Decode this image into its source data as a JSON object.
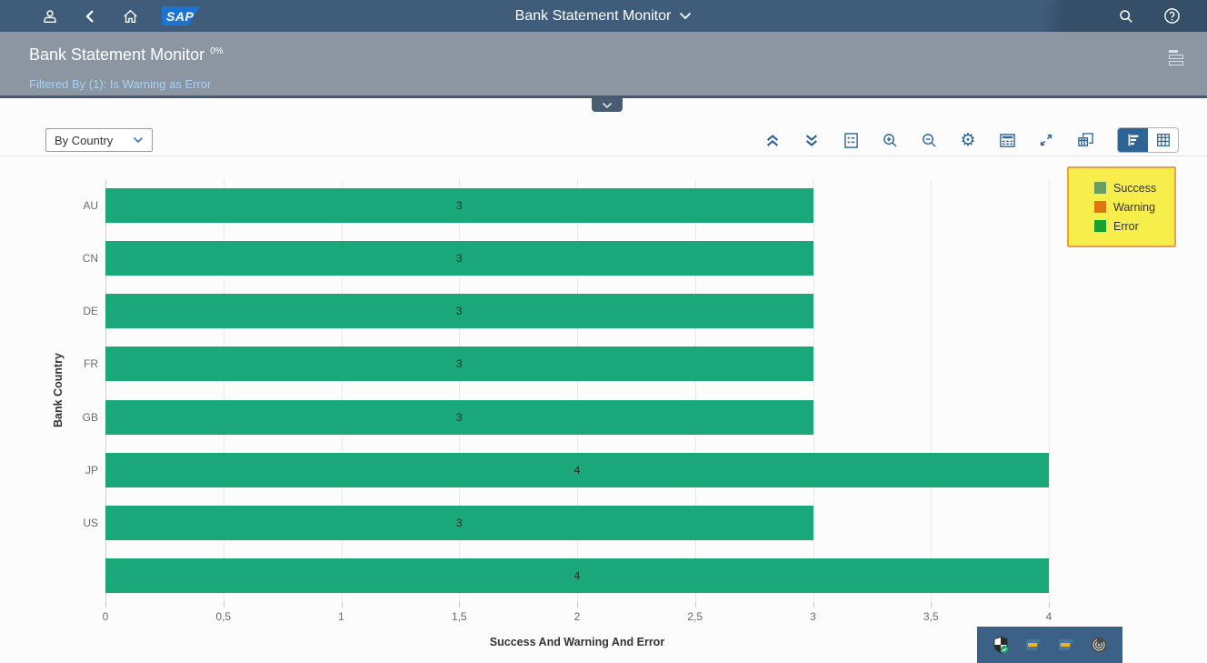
{
  "shell": {
    "title": "Bank Statement Monitor",
    "logo_text": "SAP",
    "icons": [
      "person-icon",
      "back-icon",
      "home-icon",
      "sap-logo",
      "title-chevron-down-icon",
      "search-icon",
      "help-icon"
    ]
  },
  "page_header": {
    "title": "Bank Statement Monitor",
    "superscript": "0%",
    "filter_link": "Filtered By (1): Is Warning as Error",
    "right_icon": "header-lines-icon",
    "collapse_tab_icon": "chevron-down-icon"
  },
  "toolbar": {
    "dimension_select": {
      "value": "By Country"
    },
    "icons": [
      "collapse-all-icon",
      "expand-all-icon",
      "legend-toggle-icon",
      "zoom-in-icon",
      "zoom-out-icon",
      "settings-icon",
      "table-details-icon",
      "fullscreen-icon",
      "export-icon"
    ],
    "view_switch": {
      "options": [
        "chart-view",
        "table-view"
      ],
      "selected": "chart-view"
    }
  },
  "chart_data": {
    "type": "bar",
    "orientation": "horizontal",
    "categories": [
      "AU",
      "CN",
      "DE",
      "FR",
      "GB",
      "JP",
      "US",
      ""
    ],
    "values": [
      3,
      3,
      3,
      3,
      3,
      4,
      3,
      4
    ],
    "value_labels": [
      "3",
      "3",
      "3",
      "3",
      "3",
      "4",
      "3",
      "4"
    ],
    "xlabel": "Success And Warning And Error",
    "ylabel": "Bank Country",
    "xlim": [
      0,
      4
    ],
    "xtick_values": [
      0,
      0.5,
      1,
      1.5,
      2,
      2.5,
      3,
      3.5,
      4
    ],
    "xtick_labels": [
      "0",
      "0,5",
      "1",
      "1,5",
      "2",
      "2,5",
      "3",
      "3,5",
      "4"
    ],
    "grid": true,
    "bar_color": "#1AA87A",
    "legend": {
      "position": "top-right",
      "highlighted": true,
      "highlight_fill": "#F8EE4B",
      "highlight_border": "#E8A33D",
      "items": [
        {
          "label": "Success",
          "color": "#699E63"
        },
        {
          "label": "Warning",
          "color": "#E0760F"
        },
        {
          "label": "Error",
          "color": "#17A42E"
        }
      ]
    }
  },
  "tray": {
    "background": "#3B6286",
    "icons": [
      "security-shield-icon",
      "sap-logon-icon",
      "sap-logon-icon",
      "spiral-icon"
    ]
  },
  "colors": {
    "shell_bg": "#3F5D7B",
    "header_bg": "#8B96A2",
    "header_border": "#46596E",
    "icon_blue": "#2F6497",
    "selected_segment_bg": "#2E6396",
    "link": "#A6D4F2"
  }
}
